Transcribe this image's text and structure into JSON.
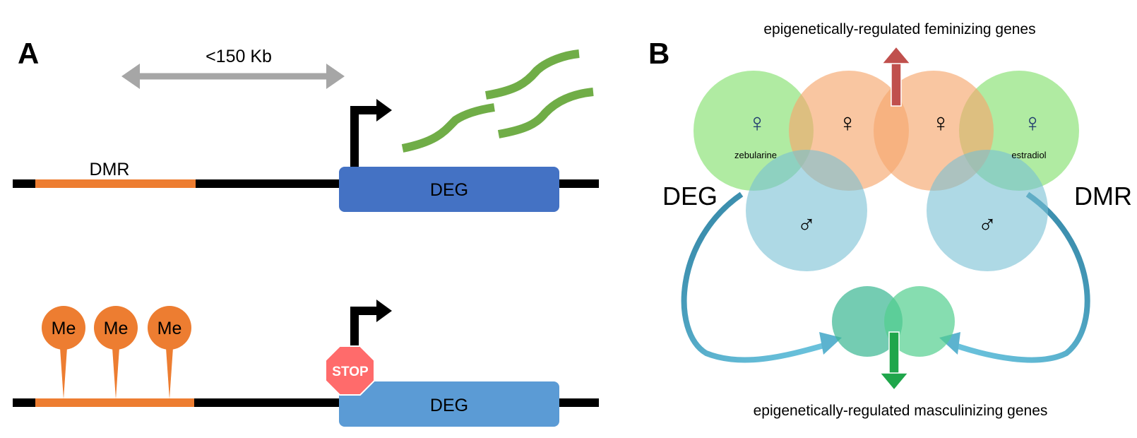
{
  "panel_a": {
    "letter": "A",
    "distance_label": "<150 Kb",
    "dmr_label": "DMR",
    "deg_top_label": "DEG",
    "deg_bottom_label": "DEG",
    "methyl_labels": [
      "Me",
      "Me",
      "Me"
    ],
    "stop_label": "STOP"
  },
  "panel_b": {
    "letter": "B",
    "top_caption": "epigenetically-regulated feminizing genes",
    "bottom_caption": "epigenetically-regulated masculinizing genes",
    "deg_label": "DEG",
    "dmr_label": "DMR",
    "left_treatment": "zebularine",
    "right_treatment": "estradiol",
    "female_symbol": "♀",
    "male_symbol": "♂"
  },
  "colors": {
    "orange": "#ED7D31",
    "deg_blue_dark": "#4472C4",
    "deg_blue_light": "#5B9BD5",
    "transcript_green": "#70AD47",
    "gray_arrow": "#A6A6A6",
    "stop_red": "#FF6B6B",
    "circle_green": "#8EE27A",
    "circle_orange": "#F6A86E",
    "circle_blue": "#78BFD3",
    "teal": "#3FB894",
    "curve_blue": "#4A9DB8",
    "up_arrow": "#C0504D",
    "down_arrow": "#1FA64B"
  }
}
